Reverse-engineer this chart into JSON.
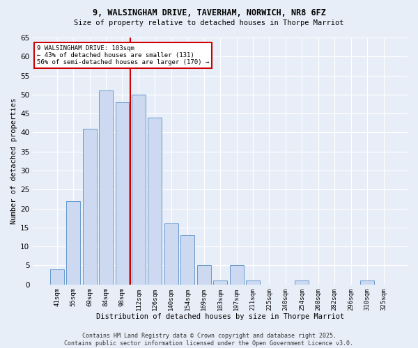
{
  "title1": "9, WALSINGHAM DRIVE, TAVERHAM, NORWICH, NR8 6FZ",
  "title2": "Size of property relative to detached houses in Thorpe Marriot",
  "xlabel": "Distribution of detached houses by size in Thorpe Marriot",
  "ylabel": "Number of detached properties",
  "bar_labels": [
    "41sqm",
    "55sqm",
    "69sqm",
    "84sqm",
    "98sqm",
    "112sqm",
    "126sqm",
    "140sqm",
    "154sqm",
    "169sqm",
    "183sqm",
    "197sqm",
    "211sqm",
    "225sqm",
    "240sqm",
    "254sqm",
    "268sqm",
    "282sqm",
    "296sqm",
    "310sqm",
    "325sqm"
  ],
  "bar_values": [
    4,
    22,
    41,
    51,
    48,
    50,
    44,
    16,
    13,
    5,
    1,
    5,
    1,
    0,
    0,
    1,
    0,
    0,
    0,
    1,
    0
  ],
  "bar_color": "#ccd9f0",
  "bar_edge_color": "#6699cc",
  "bg_color": "#e8eef8",
  "grid_color": "#ffffff",
  "vline_x_index": 5,
  "vline_color": "#cc0000",
  "annotation_line1": "9 WALSINGHAM DRIVE: 103sqm",
  "annotation_line2": "← 43% of detached houses are smaller (131)",
  "annotation_line3": "56% of semi-detached houses are larger (170) →",
  "annotation_box_color": "#cc0000",
  "footer": "Contains HM Land Registry data © Crown copyright and database right 2025.\nContains public sector information licensed under the Open Government Licence v3.0.",
  "ylim": [
    0,
    65
  ],
  "yticks": [
    0,
    5,
    10,
    15,
    20,
    25,
    30,
    35,
    40,
    45,
    50,
    55,
    60,
    65
  ],
  "fig_bg": "#e8eef8"
}
